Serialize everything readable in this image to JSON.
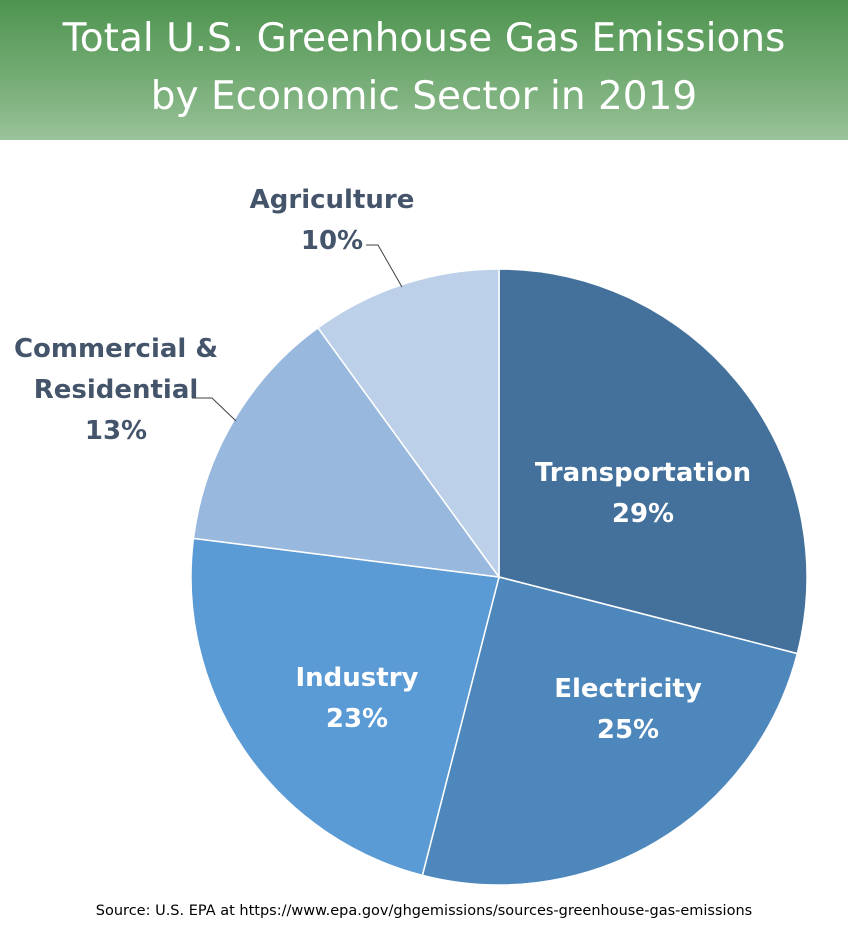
{
  "title": {
    "line1": "Total U.S. Greenhouse Gas Emissions",
    "line2": "by Economic Sector in 2019"
  },
  "source": "Source: U.S. EPA at https://www.epa.gov/ghgemissions/sources-greenhouse-gas-emissions",
  "colors": {
    "banner_top": "#4e944f",
    "banner_bottom": "#9bc39b",
    "label_inside": "#ffffff",
    "label_outside": "#44546a",
    "leader_line": "#404040",
    "slice_border": "#ffffff"
  },
  "chart_data": {
    "type": "pie",
    "title": "Total U.S. Greenhouse Gas Emissions by Economic Sector in 2019",
    "start_angle_deg": 0,
    "direction": "clockwise",
    "slices": [
      {
        "name": "Transportation",
        "value": 29,
        "value_label": "29%",
        "color": "#43719c",
        "label_position": "inside"
      },
      {
        "name": "Electricity",
        "value": 25,
        "value_label": "25%",
        "color": "#4d87bc",
        "label_position": "inside"
      },
      {
        "name": "Industry",
        "value": 23,
        "value_label": "23%",
        "color": "#5b9bd5",
        "label_position": "inside"
      },
      {
        "name": "Commercial & Residential",
        "value": 13,
        "value_label": "13%",
        "color": "#99b8de",
        "label_position": "outside"
      },
      {
        "name": "Agriculture",
        "value": 10,
        "value_label": "10%",
        "color": "#bdd0e9",
        "label_position": "outside"
      }
    ]
  }
}
